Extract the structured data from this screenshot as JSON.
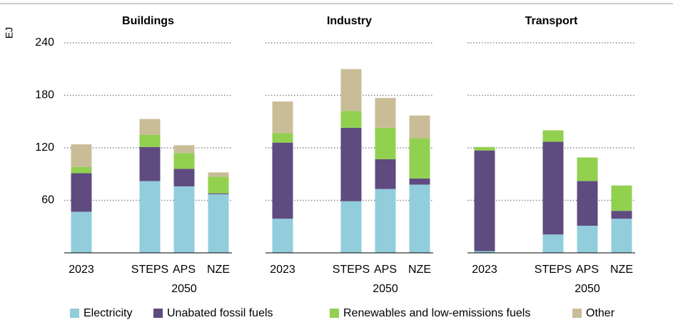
{
  "chart_data": [
    {
      "type": "stacked_bar",
      "title": "Buildings",
      "ylabel": "EJ",
      "group_label": "2050",
      "categories": [
        "2023",
        "STEPS",
        "APS",
        "NZE"
      ],
      "ylim": [
        0,
        240
      ],
      "yticks": [
        60,
        120,
        180,
        240
      ],
      "grid": true,
      "series": [
        {
          "name": "Electricity",
          "color": "#92cddc",
          "values": [
            47,
            82,
            76,
            67
          ]
        },
        {
          "name": "Unabated fossil fuels",
          "color": "#5f4b7f",
          "values": [
            44,
            39,
            20,
            1
          ]
        },
        {
          "name": "Renewables and low-emissions fuels",
          "color": "#92d050",
          "values": [
            7,
            14,
            18,
            19
          ]
        },
        {
          "name": "Other",
          "color": "#c9bd98",
          "values": [
            26,
            18,
            9,
            5
          ]
        }
      ]
    },
    {
      "type": "stacked_bar",
      "title": "Industry",
      "group_label": "2050",
      "categories": [
        "2023",
        "STEPS",
        "APS",
        "NZE"
      ],
      "ylim": [
        0,
        240
      ],
      "yticks": [
        60,
        120,
        180,
        240
      ],
      "grid": true,
      "series": [
        {
          "name": "Electricity",
          "color": "#92cddc",
          "values": [
            39,
            59,
            73,
            78
          ]
        },
        {
          "name": "Unabated fossil fuels",
          "color": "#5f4b7f",
          "values": [
            87,
            84,
            34,
            7
          ]
        },
        {
          "name": "Renewables and low-emissions fuels",
          "color": "#92d050",
          "values": [
            11,
            19,
            36,
            46
          ]
        },
        {
          "name": "Other",
          "color": "#c9bd98",
          "values": [
            36,
            48,
            34,
            26
          ]
        }
      ]
    },
    {
      "type": "stacked_bar",
      "title": "Transport",
      "group_label": "2050",
      "categories": [
        "2023",
        "STEPS",
        "APS",
        "NZE"
      ],
      "ylim": [
        0,
        240
      ],
      "yticks": [
        60,
        120,
        180,
        240
      ],
      "grid": true,
      "series": [
        {
          "name": "Electricity",
          "color": "#92cddc",
          "values": [
            2,
            21,
            31,
            39
          ]
        },
        {
          "name": "Unabated fossil fuels",
          "color": "#5f4b7f",
          "values": [
            115,
            106,
            51,
            9
          ]
        },
        {
          "name": "Renewables and low-emissions fuels",
          "color": "#92d050",
          "values": [
            4,
            13,
            27,
            29
          ]
        },
        {
          "name": "Other",
          "color": "#c9bd98",
          "values": [
            0,
            0,
            0,
            0
          ]
        }
      ]
    }
  ]
}
